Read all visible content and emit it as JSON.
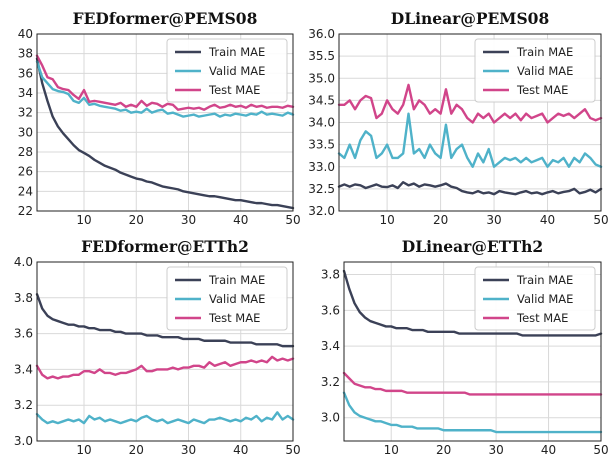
{
  "chart_data": [
    {
      "type": "line",
      "title": "FEDformer@PEMS08",
      "xlim": [
        1,
        50
      ],
      "ylim": [
        22,
        40
      ],
      "xticks": [
        10,
        20,
        30,
        40,
        50
      ],
      "yticks": [
        22,
        24,
        26,
        28,
        30,
        32,
        34,
        36,
        38,
        40
      ],
      "legend": "upper-right",
      "grid": true,
      "series": [
        {
          "name": "Train MAE",
          "color": "#3b4157",
          "values": [
            37.5,
            35.0,
            33.2,
            31.6,
            30.6,
            29.9,
            29.3,
            28.7,
            28.2,
            27.9,
            27.6,
            27.2,
            26.9,
            26.6,
            26.4,
            26.2,
            25.9,
            25.7,
            25.5,
            25.3,
            25.2,
            25.0,
            24.9,
            24.7,
            24.5,
            24.4,
            24.3,
            24.2,
            24.0,
            23.9,
            23.8,
            23.7,
            23.6,
            23.5,
            23.5,
            23.4,
            23.3,
            23.2,
            23.1,
            23.1,
            23.0,
            22.9,
            22.8,
            22.8,
            22.7,
            22.6,
            22.6,
            22.5,
            22.4,
            22.3
          ]
        },
        {
          "name": "Valid MAE",
          "color": "#4fb2c9",
          "values": [
            37.2,
            35.6,
            35.0,
            34.4,
            34.2,
            34.1,
            33.9,
            33.2,
            33.0,
            33.5,
            32.8,
            32.9,
            32.7,
            32.6,
            32.5,
            32.4,
            32.2,
            32.3,
            32.0,
            32.1,
            32.0,
            32.4,
            32.0,
            32.2,
            32.3,
            31.9,
            32.0,
            31.8,
            31.6,
            31.7,
            31.8,
            31.6,
            31.7,
            31.8,
            31.9,
            31.6,
            31.8,
            31.7,
            31.9,
            31.8,
            31.7,
            31.9,
            31.8,
            32.1,
            31.8,
            31.9,
            31.8,
            31.7,
            32.0,
            31.8
          ]
        },
        {
          "name": "Test MAE",
          "color": "#d1458a",
          "values": [
            37.8,
            36.8,
            35.6,
            35.4,
            34.6,
            34.4,
            34.3,
            33.8,
            33.4,
            34.3,
            33.1,
            33.2,
            33.1,
            33.0,
            32.9,
            32.8,
            33.0,
            32.6,
            32.8,
            32.6,
            33.2,
            32.7,
            33.0,
            32.9,
            32.6,
            32.9,
            32.8,
            32.3,
            32.4,
            32.5,
            32.4,
            32.5,
            32.3,
            32.6,
            32.8,
            32.5,
            32.6,
            32.8,
            32.6,
            32.7,
            32.5,
            32.8,
            32.6,
            32.7,
            32.5,
            32.6,
            32.6,
            32.5,
            32.7,
            32.6
          ]
        }
      ]
    },
    {
      "type": "line",
      "title": "DLinear@PEMS08",
      "xlim": [
        1,
        50
      ],
      "ylim": [
        32.0,
        36.0
      ],
      "xticks": [
        10,
        20,
        30,
        40,
        50
      ],
      "yticks": [
        "32.0",
        "32.5",
        "33.0",
        "33.5",
        "34.0",
        "34.5",
        "35.0",
        "35.5",
        "36.0"
      ],
      "legend": "upper-right",
      "grid": true,
      "series": [
        {
          "name": "Train MAE",
          "color": "#3b4157",
          "values": [
            32.55,
            32.6,
            32.55,
            32.6,
            32.58,
            32.52,
            32.56,
            32.6,
            32.55,
            32.54,
            32.58,
            32.52,
            32.65,
            32.58,
            32.62,
            32.55,
            32.6,
            32.58,
            32.55,
            32.58,
            32.62,
            32.55,
            32.52,
            32.45,
            32.42,
            32.4,
            32.45,
            32.4,
            32.42,
            32.38,
            32.45,
            32.42,
            32.4,
            32.38,
            32.42,
            32.45,
            32.4,
            32.42,
            32.38,
            32.42,
            32.45,
            32.4,
            32.43,
            32.45,
            32.5,
            32.4,
            32.43,
            32.48,
            32.42,
            32.5
          ]
        },
        {
          "name": "Valid MAE",
          "color": "#4fb2c9",
          "values": [
            33.3,
            33.2,
            33.5,
            33.2,
            33.6,
            33.8,
            33.7,
            33.2,
            33.3,
            33.5,
            33.2,
            33.2,
            33.3,
            34.2,
            33.3,
            33.4,
            33.2,
            33.5,
            33.3,
            33.2,
            33.95,
            33.2,
            33.4,
            33.5,
            33.2,
            33.0,
            33.3,
            33.1,
            33.4,
            33.0,
            33.1,
            33.2,
            33.15,
            33.2,
            33.1,
            33.2,
            33.1,
            33.15,
            33.2,
            33.0,
            33.15,
            33.1,
            33.2,
            33.0,
            33.2,
            33.1,
            33.3,
            33.2,
            33.05,
            33.0
          ]
        },
        {
          "name": "Test MAE",
          "color": "#d1458a",
          "values": [
            34.4,
            34.4,
            34.5,
            34.3,
            34.5,
            34.6,
            34.55,
            34.1,
            34.2,
            34.5,
            34.3,
            34.2,
            34.4,
            34.85,
            34.3,
            34.5,
            34.4,
            34.2,
            34.3,
            34.2,
            34.75,
            34.2,
            34.4,
            34.3,
            34.1,
            34.0,
            34.2,
            34.1,
            34.2,
            34.0,
            34.1,
            34.2,
            34.1,
            34.2,
            34.05,
            34.2,
            34.1,
            34.15,
            34.2,
            34.0,
            34.1,
            34.2,
            34.15,
            34.2,
            34.1,
            34.2,
            34.3,
            34.1,
            34.05,
            34.1
          ]
        }
      ]
    },
    {
      "type": "line",
      "title": "FEDformer@ETTh2",
      "xlim": [
        1,
        50
      ],
      "ylim": [
        3.0,
        4.0
      ],
      "xticks": [
        10,
        20,
        30,
        40,
        50
      ],
      "yticks": [
        "3.0",
        "3.2",
        "3.4",
        "3.6",
        "3.8",
        "4.0"
      ],
      "legend": "upper-right",
      "grid": true,
      "series": [
        {
          "name": "Train MAE",
          "color": "#3b4157",
          "values": [
            3.82,
            3.74,
            3.7,
            3.68,
            3.67,
            3.66,
            3.65,
            3.65,
            3.64,
            3.64,
            3.63,
            3.63,
            3.62,
            3.62,
            3.62,
            3.61,
            3.61,
            3.6,
            3.6,
            3.6,
            3.6,
            3.59,
            3.59,
            3.59,
            3.58,
            3.58,
            3.58,
            3.58,
            3.57,
            3.57,
            3.57,
            3.57,
            3.56,
            3.56,
            3.56,
            3.56,
            3.56,
            3.55,
            3.55,
            3.55,
            3.55,
            3.55,
            3.54,
            3.54,
            3.54,
            3.54,
            3.54,
            3.53,
            3.53,
            3.53
          ]
        },
        {
          "name": "Valid MAE",
          "color": "#4fb2c9",
          "values": [
            3.15,
            3.12,
            3.1,
            3.11,
            3.1,
            3.11,
            3.12,
            3.11,
            3.12,
            3.1,
            3.14,
            3.12,
            3.13,
            3.11,
            3.12,
            3.11,
            3.1,
            3.11,
            3.12,
            3.11,
            3.13,
            3.14,
            3.12,
            3.11,
            3.12,
            3.1,
            3.11,
            3.12,
            3.11,
            3.1,
            3.12,
            3.11,
            3.1,
            3.12,
            3.12,
            3.13,
            3.12,
            3.11,
            3.12,
            3.11,
            3.13,
            3.12,
            3.14,
            3.11,
            3.13,
            3.12,
            3.16,
            3.12,
            3.14,
            3.12
          ]
        },
        {
          "name": "Test MAE",
          "color": "#d1458a",
          "values": [
            3.42,
            3.37,
            3.35,
            3.36,
            3.35,
            3.36,
            3.36,
            3.37,
            3.37,
            3.39,
            3.39,
            3.38,
            3.4,
            3.38,
            3.38,
            3.37,
            3.38,
            3.38,
            3.39,
            3.4,
            3.42,
            3.39,
            3.39,
            3.4,
            3.4,
            3.4,
            3.41,
            3.4,
            3.41,
            3.41,
            3.42,
            3.42,
            3.41,
            3.44,
            3.42,
            3.43,
            3.44,
            3.42,
            3.43,
            3.44,
            3.44,
            3.45,
            3.44,
            3.45,
            3.44,
            3.47,
            3.45,
            3.46,
            3.45,
            3.46
          ]
        }
      ]
    },
    {
      "type": "line",
      "title": "DLinear@ETTh2",
      "xlim": [
        1,
        50
      ],
      "ylim": [
        2.87,
        3.87
      ],
      "xticks": [
        10,
        20,
        30,
        40,
        50
      ],
      "yticks": [
        "3.0",
        "3.2",
        "3.4",
        "3.6",
        "3.8"
      ],
      "legend": "upper-right",
      "grid": true,
      "series": [
        {
          "name": "Train MAE",
          "color": "#3b4157",
          "values": [
            3.82,
            3.72,
            3.64,
            3.59,
            3.56,
            3.54,
            3.53,
            3.52,
            3.51,
            3.51,
            3.5,
            3.5,
            3.5,
            3.49,
            3.49,
            3.49,
            3.48,
            3.48,
            3.48,
            3.48,
            3.48,
            3.48,
            3.47,
            3.47,
            3.47,
            3.47,
            3.47,
            3.47,
            3.47,
            3.47,
            3.47,
            3.47,
            3.47,
            3.47,
            3.46,
            3.46,
            3.46,
            3.46,
            3.46,
            3.46,
            3.46,
            3.46,
            3.46,
            3.46,
            3.46,
            3.46,
            3.46,
            3.46,
            3.46,
            3.47
          ]
        },
        {
          "name": "Valid MAE",
          "color": "#4fb2c9",
          "values": [
            3.14,
            3.07,
            3.03,
            3.01,
            3.0,
            2.99,
            2.98,
            2.98,
            2.97,
            2.96,
            2.96,
            2.95,
            2.95,
            2.95,
            2.94,
            2.94,
            2.94,
            2.94,
            2.94,
            2.93,
            2.93,
            2.93,
            2.93,
            2.93,
            2.93,
            2.93,
            2.93,
            2.93,
            2.93,
            2.92,
            2.92,
            2.92,
            2.92,
            2.92,
            2.92,
            2.92,
            2.92,
            2.92,
            2.92,
            2.92,
            2.92,
            2.92,
            2.92,
            2.92,
            2.92,
            2.92,
            2.92,
            2.92,
            2.92,
            2.92
          ]
        },
        {
          "name": "Test MAE",
          "color": "#d1458a",
          "values": [
            3.25,
            3.22,
            3.19,
            3.18,
            3.17,
            3.17,
            3.16,
            3.16,
            3.15,
            3.15,
            3.15,
            3.15,
            3.14,
            3.14,
            3.14,
            3.14,
            3.14,
            3.14,
            3.14,
            3.14,
            3.14,
            3.14,
            3.14,
            3.14,
            3.13,
            3.13,
            3.13,
            3.13,
            3.13,
            3.13,
            3.13,
            3.13,
            3.13,
            3.13,
            3.13,
            3.13,
            3.13,
            3.13,
            3.13,
            3.13,
            3.13,
            3.13,
            3.13,
            3.13,
            3.13,
            3.13,
            3.13,
            3.13,
            3.13,
            3.13
          ]
        }
      ]
    }
  ]
}
